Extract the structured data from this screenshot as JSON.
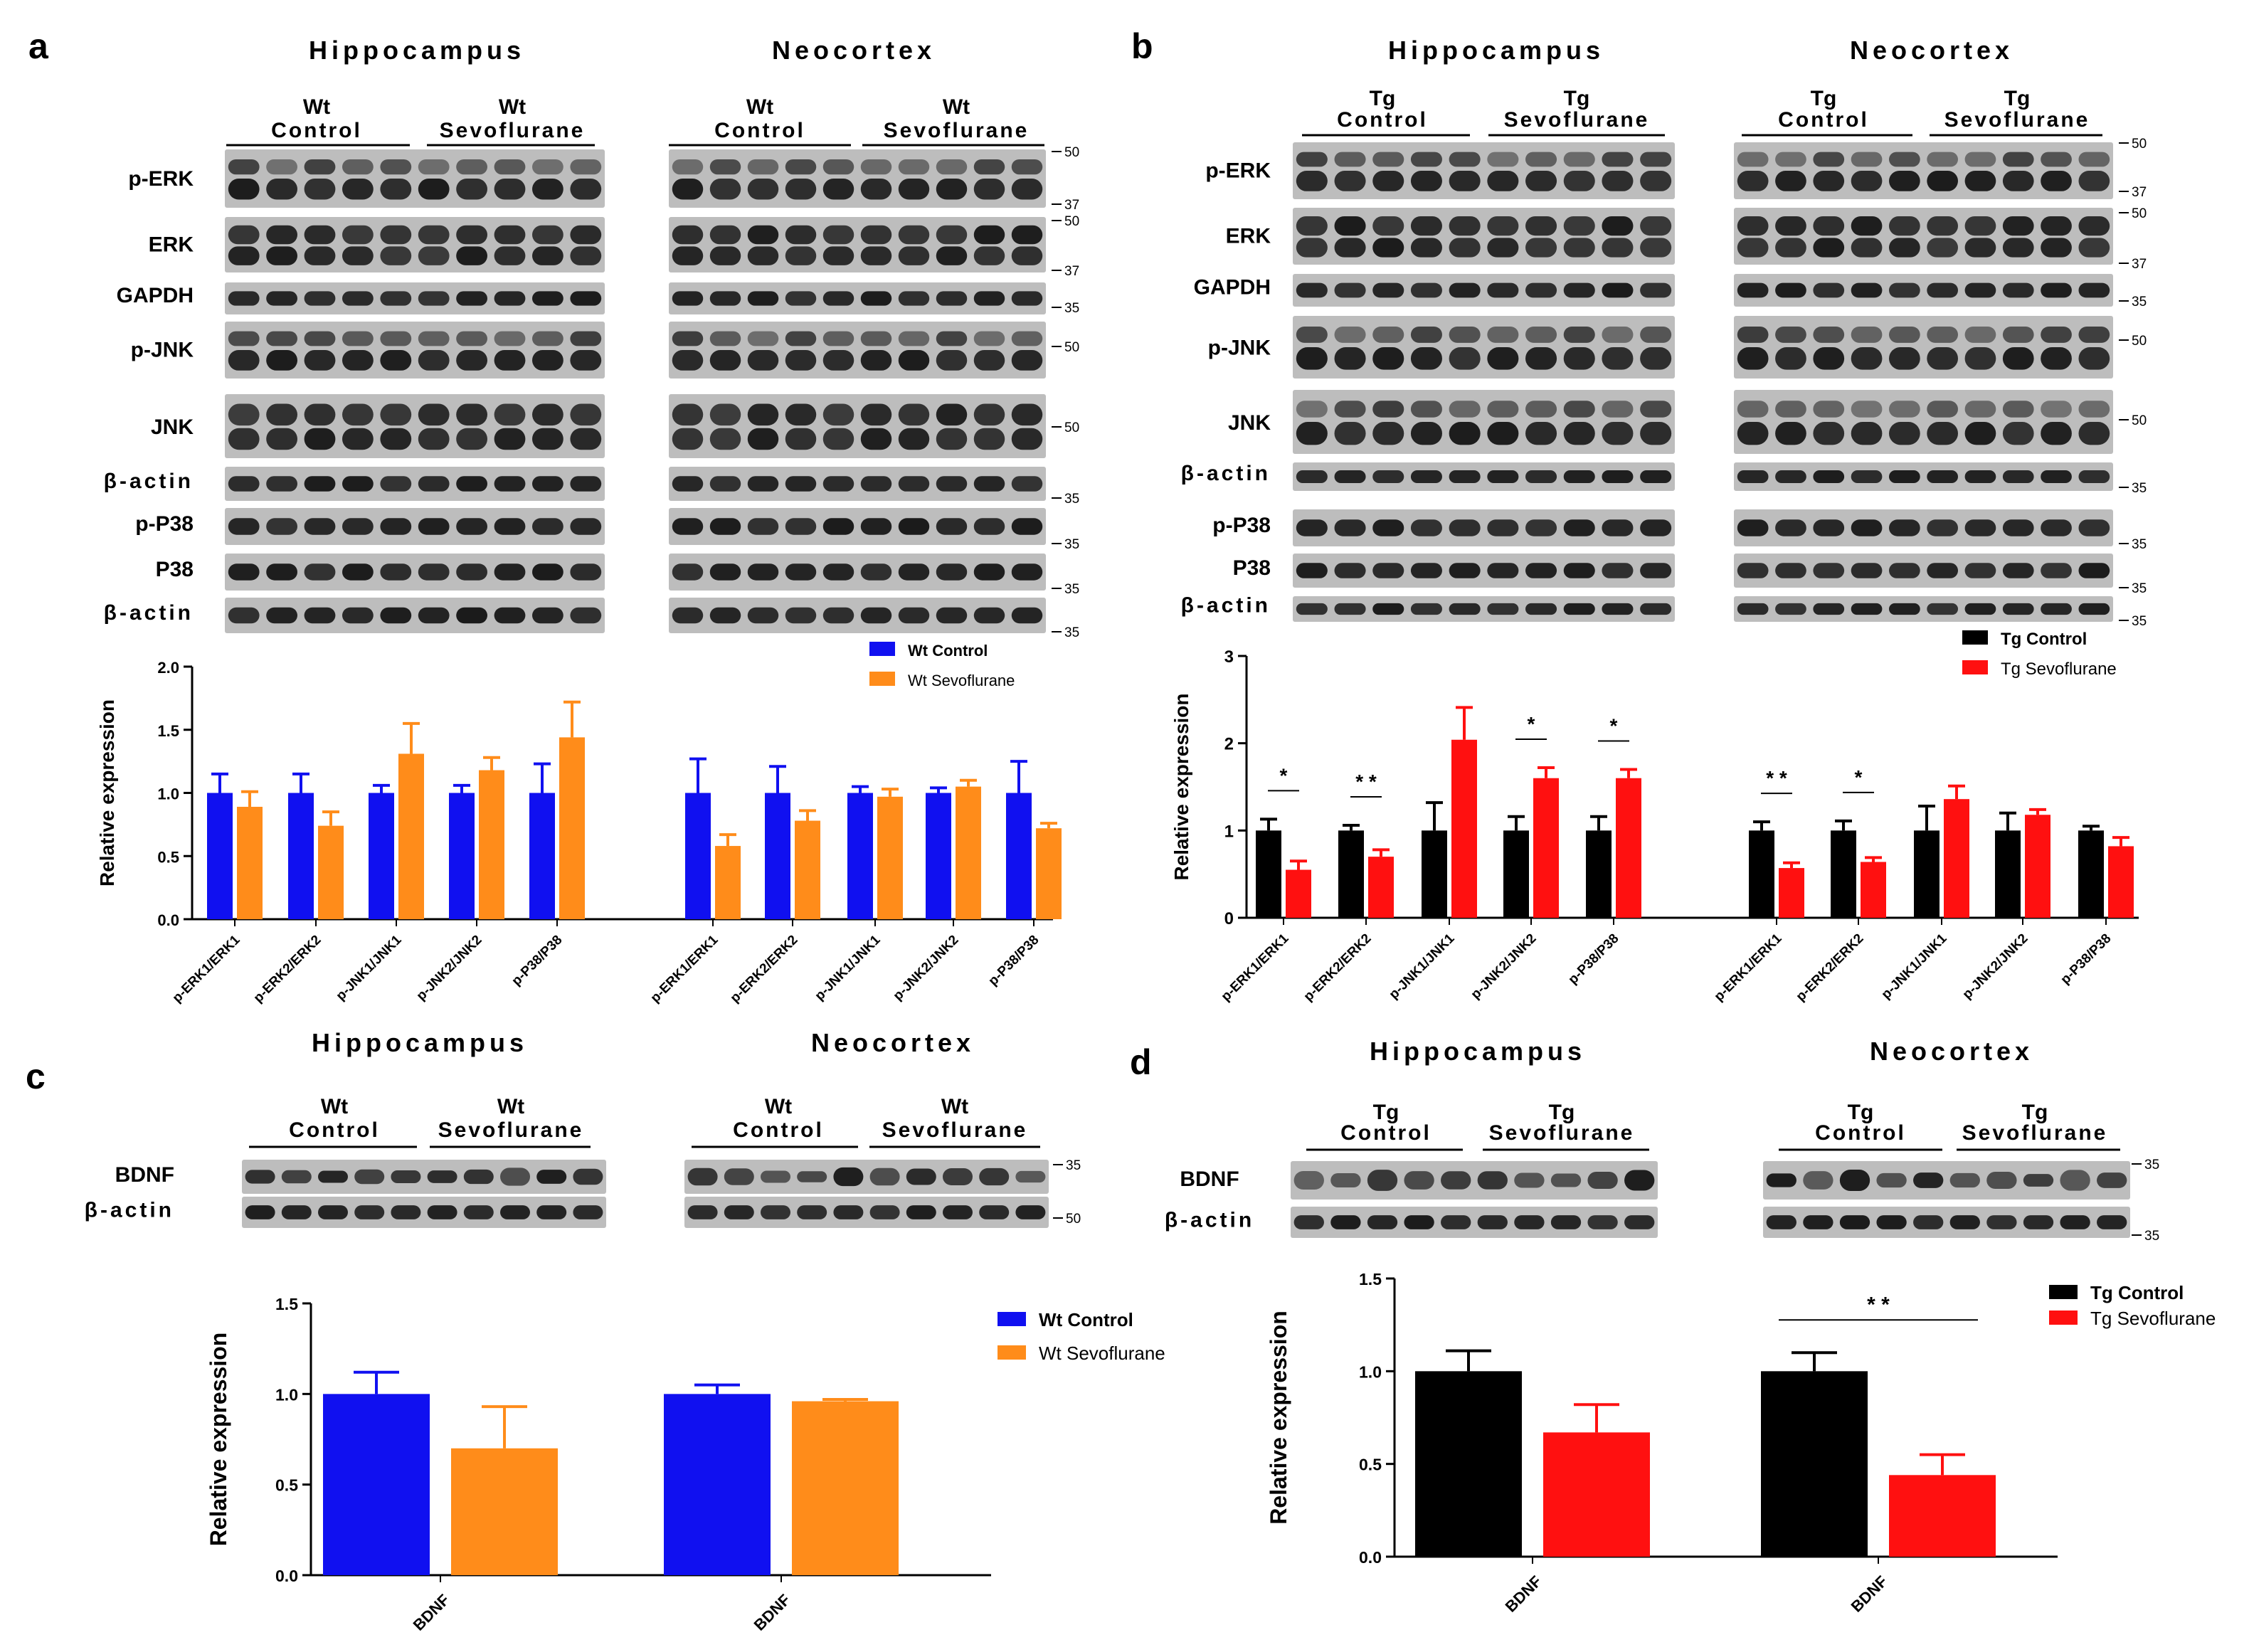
{
  "colors": {
    "wt_control": "#1010f0",
    "wt_sevo": "#ff8c1a",
    "tg_control": "#000000",
    "tg_sevo": "#ff1010",
    "blot_bg": "#bdbdbd",
    "band": "#1b1b1b"
  },
  "panels": [
    {
      "letter": "a",
      "genotype": "Wt",
      "regions": [
        "Hippocampus",
        "Neocortex"
      ],
      "groups": [
        {
          "line1": "Wt",
          "line2": "Control"
        },
        {
          "line1": "Wt",
          "line2": "Sevoflurane"
        }
      ],
      "blot_rows": [
        {
          "label": "p-ERK",
          "markers": [
            "50",
            "37"
          ]
        },
        {
          "label": "ERK",
          "markers": [
            "50",
            "37"
          ]
        },
        {
          "label": "GAPDH",
          "markers": [
            "35"
          ]
        },
        {
          "label": "p-JNK",
          "markers": [
            "50"
          ]
        },
        {
          "label": "JNK",
          "markers": [
            "50"
          ]
        },
        {
          "label": "β-actin",
          "markers": [
            "35"
          ]
        },
        {
          "label": "p-P38",
          "markers": [
            "35"
          ]
        },
        {
          "label": "P38",
          "markers": [
            "35"
          ]
        },
        {
          "label": "β-actin",
          "markers": [
            "35"
          ]
        }
      ]
    },
    {
      "letter": "b",
      "genotype": "Tg",
      "regions": [
        "Hippocampus",
        "Neocortex"
      ],
      "groups": [
        {
          "line1": "Tg",
          "line2": "Control"
        },
        {
          "line1": "Tg",
          "line2": "Sevoflurane"
        }
      ],
      "blot_rows": [
        {
          "label": "p-ERK",
          "markers": [
            "50",
            "37"
          ]
        },
        {
          "label": "ERK",
          "markers": [
            "50",
            "37"
          ]
        },
        {
          "label": "GAPDH",
          "markers": [
            "35"
          ]
        },
        {
          "label": "p-JNK",
          "markers": [
            "50"
          ]
        },
        {
          "label": "JNK",
          "markers": [
            "50"
          ]
        },
        {
          "label": "β-actin",
          "markers": [
            "35"
          ]
        },
        {
          "label": "p-P38",
          "markers": [
            "35"
          ]
        },
        {
          "label": "P38",
          "markers": [
            "35"
          ]
        },
        {
          "label": "β-actin",
          "markers": [
            "35"
          ]
        }
      ]
    },
    {
      "letter": "c",
      "genotype": "Wt",
      "regions": [
        "Hippocampus",
        "Neocortex"
      ],
      "groups": [
        {
          "line1": "Wt",
          "line2": "Control"
        },
        {
          "line1": "Wt",
          "line2": "Sevoflurane"
        }
      ],
      "blot_rows": [
        {
          "label": "BDNF",
          "markers": [
            "35"
          ]
        },
        {
          "label": "β-actin",
          "markers": [
            "50"
          ]
        }
      ]
    },
    {
      "letter": "d",
      "genotype": "Tg",
      "regions": [
        "Hippocampus",
        "Neocortex"
      ],
      "groups": [
        {
          "line1": "Tg",
          "line2": "Control"
        },
        {
          "line1": "Tg",
          "line2": "Sevoflurane"
        }
      ],
      "blot_rows": [
        {
          "label": "BDNF",
          "markers": [
            "35"
          ]
        },
        {
          "label": "β-actin",
          "markers": [
            "35"
          ]
        }
      ]
    }
  ],
  "chart_data": [
    {
      "panel": "a",
      "type": "bar",
      "ylabel": "Relative expression",
      "ylim": [
        0,
        2.0
      ],
      "yticks": [
        "0.0",
        "0.5",
        "1.0",
        "1.5",
        "2.0"
      ],
      "categories": [
        "p-ERK1/ERK1",
        "p-ERK2/ERK2",
        "p-JNK1/JNK1",
        "p-JNK2/JNK2",
        "p-P38/P38",
        "p-ERK1/ERK1",
        "p-ERK2/ERK2",
        "p-JNK1/JNK1",
        "p-JNK2/JNK2",
        "p-P38/P38"
      ],
      "series": [
        {
          "name": "Wt Control",
          "color": "#1010f0",
          "values": [
            1.0,
            1.0,
            1.0,
            1.0,
            1.0,
            1.0,
            1.0,
            1.0,
            1.0,
            1.0
          ],
          "errors": [
            0.15,
            0.15,
            0.06,
            0.06,
            0.23,
            0.27,
            0.21,
            0.05,
            0.04,
            0.25
          ]
        },
        {
          "name": "Wt Sevoflurane",
          "color": "#ff8c1a",
          "values": [
            0.89,
            0.74,
            1.31,
            1.18,
            1.44,
            0.58,
            0.78,
            0.97,
            1.05,
            0.72
          ],
          "errors": [
            0.12,
            0.11,
            0.24,
            0.1,
            0.28,
            0.09,
            0.08,
            0.06,
            0.05,
            0.04
          ]
        }
      ],
      "significance": [],
      "legend_position": "top-right"
    },
    {
      "panel": "b",
      "type": "bar",
      "ylabel": "Relative expression",
      "ylim": [
        0,
        3
      ],
      "yticks": [
        "0",
        "1",
        "2",
        "3"
      ],
      "categories": [
        "p-ERK1/ERK1",
        "p-ERK2/ERK2",
        "p-JNK1/JNK1",
        "p-JNK2/JNK2",
        "p-P38/P38",
        "p-ERK1/ERK1",
        "p-ERK2/ERK2",
        "p-JNK1/JNK1",
        "p-JNK2/JNK2",
        "p-P38/P38"
      ],
      "series": [
        {
          "name": "Tg Control",
          "color": "#000000",
          "values": [
            1.0,
            1.0,
            1.0,
            1.0,
            1.0,
            1.0,
            1.0,
            1.0,
            1.0,
            1.0
          ],
          "errors": [
            0.13,
            0.06,
            0.32,
            0.16,
            0.16,
            0.1,
            0.11,
            0.28,
            0.2,
            0.05
          ]
        },
        {
          "name": "Tg Sevoflurane",
          "color": "#ff1010",
          "values": [
            0.55,
            0.7,
            2.04,
            1.6,
            1.6,
            0.57,
            0.64,
            1.36,
            1.18,
            0.82
          ],
          "errors": [
            0.1,
            0.08,
            0.37,
            0.12,
            0.1,
            0.06,
            0.05,
            0.15,
            0.06,
            0.1
          ]
        }
      ],
      "significance": [
        {
          "index": 0,
          "label": "*"
        },
        {
          "index": 1,
          "label": "* *"
        },
        {
          "index": 3,
          "label": "*"
        },
        {
          "index": 4,
          "label": "*"
        },
        {
          "index": 5,
          "label": "* *"
        },
        {
          "index": 6,
          "label": "*"
        }
      ],
      "legend_position": "top-right"
    },
    {
      "panel": "c",
      "type": "bar",
      "ylabel": "Relative expression",
      "ylim": [
        0,
        1.5
      ],
      "yticks": [
        "0.0",
        "0.5",
        "1.0",
        "1.5"
      ],
      "categories": [
        "BDNF",
        "BDNF"
      ],
      "series": [
        {
          "name": "Wt Control",
          "color": "#1010f0",
          "values": [
            1.0,
            1.0
          ],
          "errors": [
            0.12,
            0.05
          ]
        },
        {
          "name": "Wt  Sevoflurane",
          "color": "#ff8c1a",
          "values": [
            0.7,
            0.96
          ],
          "errors": [
            0.23,
            0.01
          ]
        }
      ],
      "significance": [],
      "legend_position": "top-right"
    },
    {
      "panel": "d",
      "type": "bar",
      "ylabel": "Relative expression",
      "ylim": [
        0,
        1.5
      ],
      "yticks": [
        "0.0",
        "0.5",
        "1.0",
        "1.5"
      ],
      "categories": [
        "BDNF",
        "BDNF"
      ],
      "series": [
        {
          "name": "Tg Control",
          "color": "#000000",
          "values": [
            1.0,
            1.0
          ],
          "errors": [
            0.11,
            0.1
          ]
        },
        {
          "name": "Tg Sevoflurane",
          "color": "#ff1010",
          "values": [
            0.67,
            0.44
          ],
          "errors": [
            0.15,
            0.11
          ]
        }
      ],
      "significance": [
        {
          "index": 1,
          "label": "* *"
        }
      ],
      "legend_position": "top-right"
    }
  ]
}
